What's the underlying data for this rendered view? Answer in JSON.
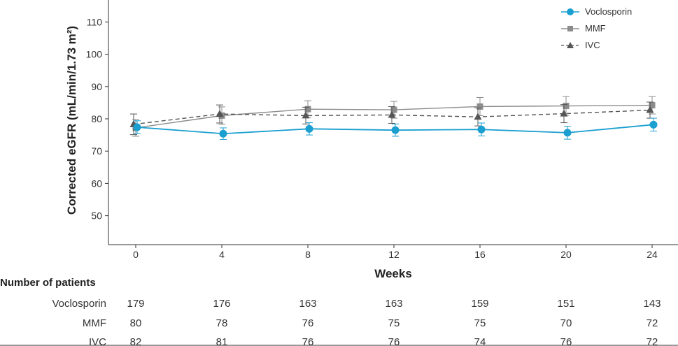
{
  "chart_data": {
    "type": "line",
    "title": "",
    "xlabel": "Weeks",
    "ylabel": "Corrected eGFR (mL/min/1.73 m²)",
    "x": [
      0,
      4,
      8,
      12,
      16,
      20,
      24
    ],
    "xticks": [
      "0",
      "4",
      "8",
      "12",
      "16",
      "20",
      "24"
    ],
    "yticks": [
      50,
      60,
      70,
      80,
      90,
      100,
      110
    ],
    "ylim": [
      41,
      115
    ],
    "legend_position": "top-right",
    "series": [
      {
        "name": "Voclosporin",
        "color": "#1a9fd0",
        "marker": "circle",
        "line": "solid",
        "values": [
          77.4,
          75.4,
          76.9,
          76.5,
          76.7,
          75.7,
          78.2
        ],
        "err": [
          2.0,
          1.8,
          1.9,
          1.9,
          2.0,
          2.0,
          2.0
        ]
      },
      {
        "name": "MMF",
        "color": "#8c8c8c",
        "marker": "square",
        "line": "solid",
        "values": [
          77.2,
          81.0,
          83.0,
          82.8,
          83.8,
          84.0,
          84.2
        ],
        "err": [
          2.6,
          2.7,
          2.6,
          2.6,
          2.8,
          2.9,
          2.7
        ]
      },
      {
        "name": "IVC",
        "color": "#555555",
        "marker": "triangle",
        "line": "dashed",
        "values": [
          78.3,
          81.5,
          81.0,
          81.2,
          80.6,
          81.6,
          82.7
        ],
        "err": [
          3.2,
          2.8,
          2.6,
          2.6,
          2.8,
          2.8,
          2.5
        ]
      }
    ]
  },
  "patients_table": {
    "title": "Number of patients",
    "rows": [
      {
        "label": "Voclosporin",
        "values": [
          "179",
          "176",
          "163",
          "163",
          "159",
          "151",
          "143"
        ]
      },
      {
        "label": "MMF",
        "values": [
          "80",
          "78",
          "76",
          "75",
          "75",
          "70",
          "72"
        ]
      },
      {
        "label": "IVC",
        "values": [
          "82",
          "81",
          "76",
          "76",
          "74",
          "76",
          "72"
        ]
      }
    ]
  }
}
